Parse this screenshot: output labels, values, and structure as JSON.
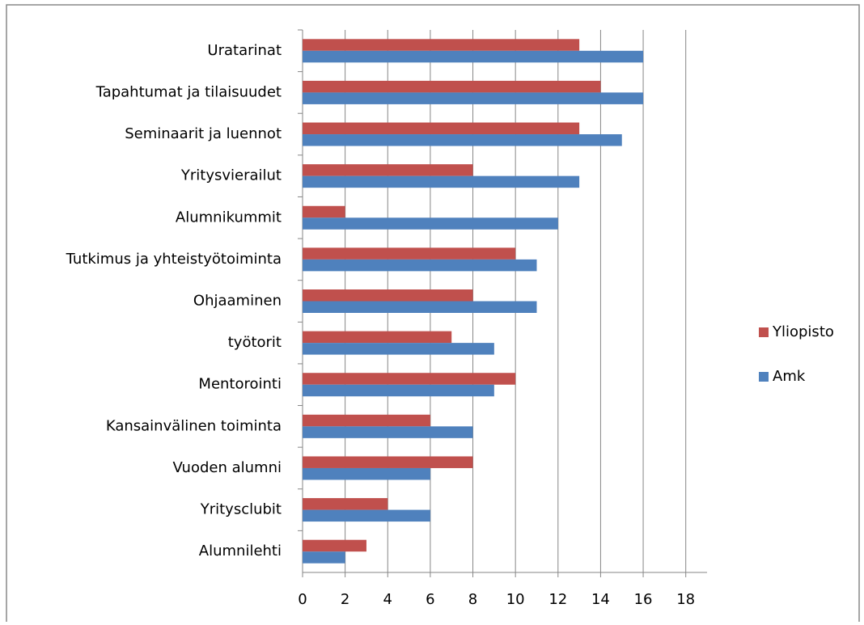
{
  "chart_data": {
    "type": "hbar",
    "categories": [
      "Uratarinat",
      "Tapahtumat ja tilaisuudet",
      "Seminaarit ja luennot",
      "Yritysvierailut",
      "Alumnikummit",
      "Tutkimus ja yhteistyötoiminta",
      "Ohjaaminen",
      "työtorit",
      "Mentorointi",
      "Kansainvälinen toiminta",
      "Vuoden alumni",
      "Yritysclubit",
      "Alumnilehti"
    ],
    "series": [
      {
        "name": "Yliopisto",
        "color": "#c0504d",
        "values": [
          13,
          14,
          13,
          8,
          2,
          10,
          8,
          7,
          10,
          6,
          8,
          4,
          3
        ]
      },
      {
        "name": "Amk",
        "color": "#4f81bd",
        "values": [
          16,
          16,
          15,
          13,
          12,
          11,
          11,
          9,
          9,
          8,
          6,
          6,
          2
        ]
      }
    ],
    "xlim": [
      0,
      19
    ],
    "xticks": [
      0,
      2,
      4,
      6,
      8,
      10,
      12,
      14,
      16,
      18
    ],
    "grid": true,
    "legend": "right"
  }
}
